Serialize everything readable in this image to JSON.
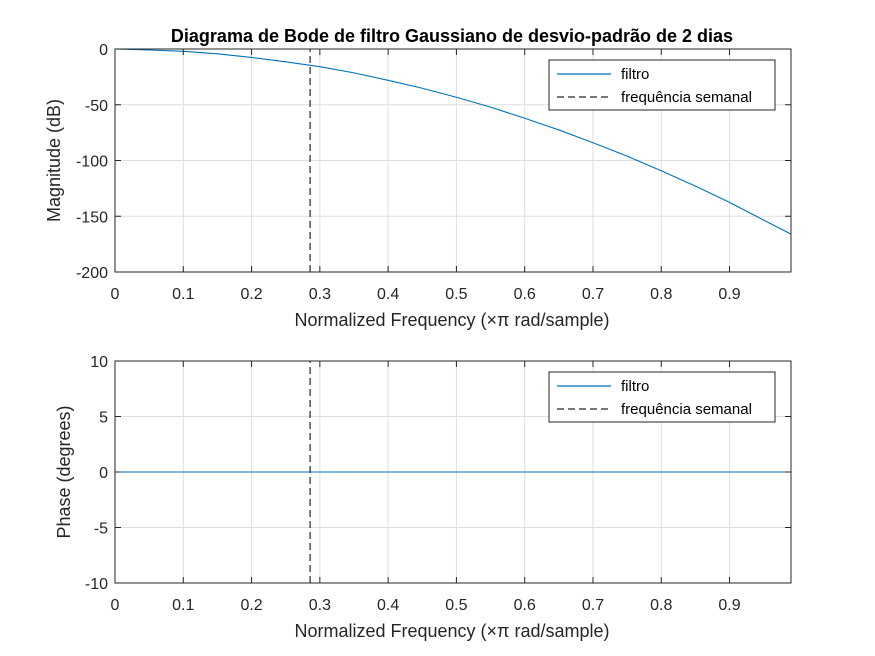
{
  "figure": {
    "title": "Diagrama de Bode de filtro Gaussiano de desvio-padrão de 2 dias"
  },
  "colors": {
    "series_line": "#0072BD",
    "marker_line": "#262626",
    "grid": "#DFDFDF",
    "axes": "#262626",
    "background": "#FFFFFF"
  },
  "chart_data": [
    {
      "type": "line",
      "name": "magnitude-plot",
      "title": "Diagrama de Bode de filtro Gaussiano de desvio-padrão de 2 dias",
      "xlabel_main": "Normalized Frequency",
      "xlabel_unit": "(×π rad/sample)",
      "ylabel": "Magnitude (dB)",
      "xlim": [
        0,
        0.99
      ],
      "ylim": [
        -200,
        0
      ],
      "xticks": [
        0,
        0.1,
        0.2,
        0.3,
        0.4,
        0.5,
        0.6,
        0.7,
        0.8,
        0.9
      ],
      "xtick_labels": [
        "0",
        "0.1",
        "0.2",
        "0.3",
        "0.4",
        "0.5",
        "0.6",
        "0.7",
        "0.8",
        "0.9"
      ],
      "yticks": [
        -200,
        -150,
        -100,
        -50,
        0
      ],
      "ytick_labels": [
        "-200",
        "-150",
        "-100",
        "-50",
        "0"
      ],
      "grid": true,
      "legend": {
        "placement": "top-right",
        "entries": [
          "filtro",
          "frequência semanal"
        ]
      },
      "series": [
        {
          "name": "filtro",
          "style": "solid",
          "x": [
            0,
            0.05,
            0.1,
            0.15,
            0.2,
            0.25,
            0.3,
            0.35,
            0.4,
            0.45,
            0.5,
            0.55,
            0.6,
            0.65,
            0.7,
            0.75,
            0.8,
            0.85,
            0.9,
            0.95,
            0.99
          ],
          "y": [
            0,
            -0.9,
            -2.1,
            -4.3,
            -7.6,
            -11.5,
            -15.9,
            -21.4,
            -28.1,
            -35.2,
            -43.3,
            -52.1,
            -62.1,
            -72.6,
            -84.1,
            -96.1,
            -109.2,
            -123,
            -137.6,
            -153.5,
            -166
          ]
        },
        {
          "name": "frequência semanal",
          "style": "dashed",
          "x": [
            0.2857,
            0.2857
          ],
          "y": [
            -200,
            0
          ]
        }
      ]
    },
    {
      "type": "line",
      "name": "phase-plot",
      "xlabel_main": "Normalized Frequency",
      "xlabel_unit": "(×π rad/sample)",
      "ylabel": "Phase (degrees)",
      "xlim": [
        0,
        0.99
      ],
      "ylim": [
        -10,
        10
      ],
      "xticks": [
        0,
        0.1,
        0.2,
        0.3,
        0.4,
        0.5,
        0.6,
        0.7,
        0.8,
        0.9
      ],
      "xtick_labels": [
        "0",
        "0.1",
        "0.2",
        "0.3",
        "0.4",
        "0.5",
        "0.6",
        "0.7",
        "0.8",
        "0.9"
      ],
      "yticks": [
        -10,
        -5,
        0,
        5,
        10
      ],
      "ytick_labels": [
        "-10",
        "-5",
        "0",
        "5",
        "10"
      ],
      "grid": true,
      "legend": {
        "placement": "top-right",
        "entries": [
          "filtro",
          "frequência semanal"
        ]
      },
      "series": [
        {
          "name": "filtro",
          "style": "solid",
          "x": [
            0,
            0.99
          ],
          "y": [
            0,
            0
          ]
        },
        {
          "name": "frequência semanal",
          "style": "dashed",
          "x": [
            0.2857,
            0.2857
          ],
          "y": [
            -10,
            10
          ]
        }
      ]
    }
  ]
}
